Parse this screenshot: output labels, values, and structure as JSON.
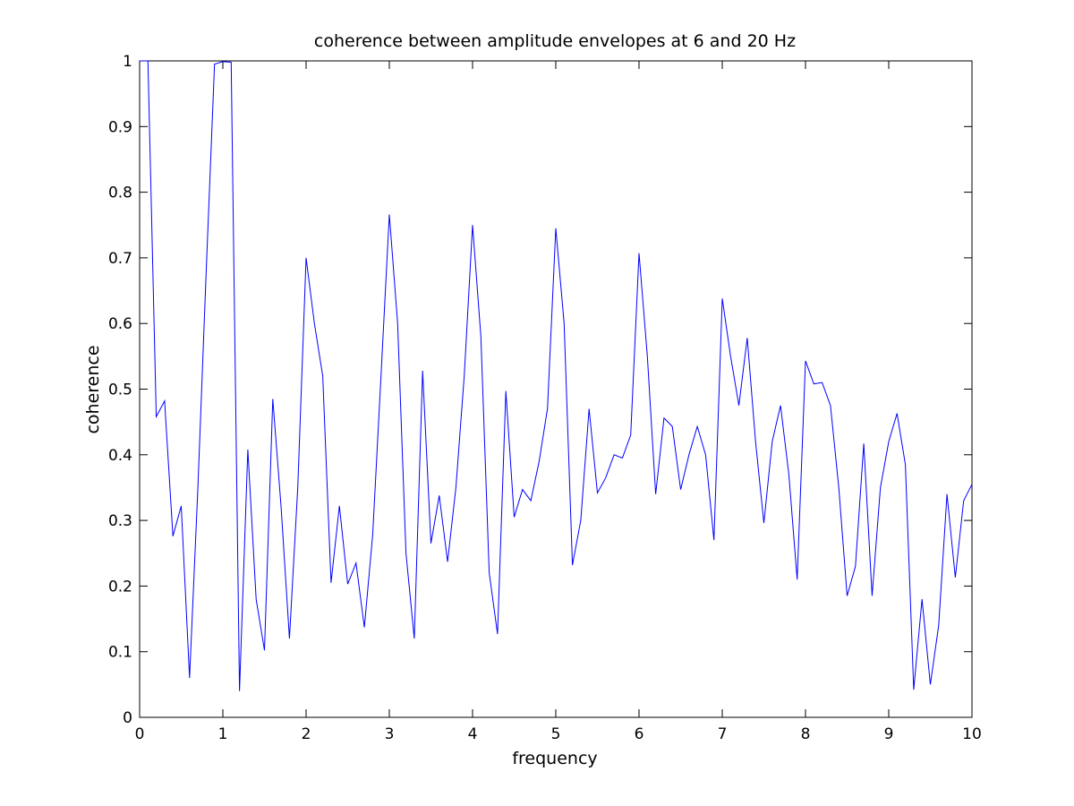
{
  "chart_data": {
    "type": "line",
    "title": "coherence between amplitude envelopes at 6 and 20 Hz",
    "xlabel": "frequency",
    "ylabel": "coherence",
    "xlim": [
      0,
      10
    ],
    "ylim": [
      0,
      1
    ],
    "xticks": [
      0,
      1,
      2,
      3,
      4,
      5,
      6,
      7,
      8,
      9,
      10
    ],
    "yticks": [
      0,
      0.1,
      0.2,
      0.3,
      0.4,
      0.5,
      0.6,
      0.7,
      0.8,
      0.9,
      1
    ],
    "grid": false,
    "line_color": "#0000ff",
    "series": [
      {
        "x": [
          0.0,
          0.1,
          0.2,
          0.3,
          0.4,
          0.5,
          0.6,
          0.7,
          0.8,
          0.9,
          1.0,
          1.1,
          1.2,
          1.3,
          1.4,
          1.5,
          1.6,
          1.7,
          1.8,
          1.9,
          2.0,
          2.1,
          2.2,
          2.3,
          2.4,
          2.5,
          2.6,
          2.7,
          2.8,
          2.9,
          3.0,
          3.1,
          3.2,
          3.3,
          3.4,
          3.5,
          3.6,
          3.7,
          3.8,
          3.9,
          4.0,
          4.1,
          4.2,
          4.3,
          4.4,
          4.5,
          4.6,
          4.7,
          4.8,
          4.9,
          5.0,
          5.1,
          5.2,
          5.3,
          5.4,
          5.5,
          5.6,
          5.7,
          5.8,
          5.9,
          6.0,
          6.1,
          6.2,
          6.3,
          6.4,
          6.5,
          6.6,
          6.7,
          6.8,
          6.9,
          7.0,
          7.1,
          7.2,
          7.3,
          7.4,
          7.5,
          7.6,
          7.7,
          7.8,
          7.9,
          8.0,
          8.1,
          8.2,
          8.3,
          8.4,
          8.5,
          8.6,
          8.7,
          8.8,
          8.9,
          9.0,
          9.1,
          9.2,
          9.3,
          9.4,
          9.5,
          9.6,
          9.7,
          9.8,
          9.9,
          10.0
        ],
        "y": [
          1.0,
          1.0,
          0.458,
          0.482,
          0.276,
          0.322,
          0.06,
          0.35,
          0.68,
          0.995,
          0.999,
          0.998,
          0.04,
          0.408,
          0.18,
          0.102,
          0.485,
          0.32,
          0.12,
          0.35,
          0.7,
          0.6,
          0.52,
          0.205,
          0.322,
          0.203,
          0.235,
          0.137,
          0.278,
          0.52,
          0.766,
          0.6,
          0.25,
          0.12,
          0.528,
          0.265,
          0.338,
          0.237,
          0.35,
          0.52,
          0.75,
          0.58,
          0.22,
          0.127,
          0.497,
          0.305,
          0.347,
          0.33,
          0.39,
          0.47,
          0.745,
          0.6,
          0.232,
          0.3,
          0.47,
          0.342,
          0.365,
          0.4,
          0.395,
          0.43,
          0.707,
          0.55,
          0.34,
          0.456,
          0.443,
          0.347,
          0.4,
          0.443,
          0.4,
          0.27,
          0.638,
          0.55,
          0.475,
          0.578,
          0.42,
          0.296,
          0.42,
          0.475,
          0.37,
          0.21,
          0.543,
          0.508,
          0.51,
          0.475,
          0.35,
          0.185,
          0.23,
          0.417,
          0.185,
          0.35,
          0.42,
          0.463,
          0.385,
          0.042,
          0.18,
          0.05,
          0.14,
          0.34,
          0.213,
          0.33,
          0.355
        ]
      }
    ]
  }
}
